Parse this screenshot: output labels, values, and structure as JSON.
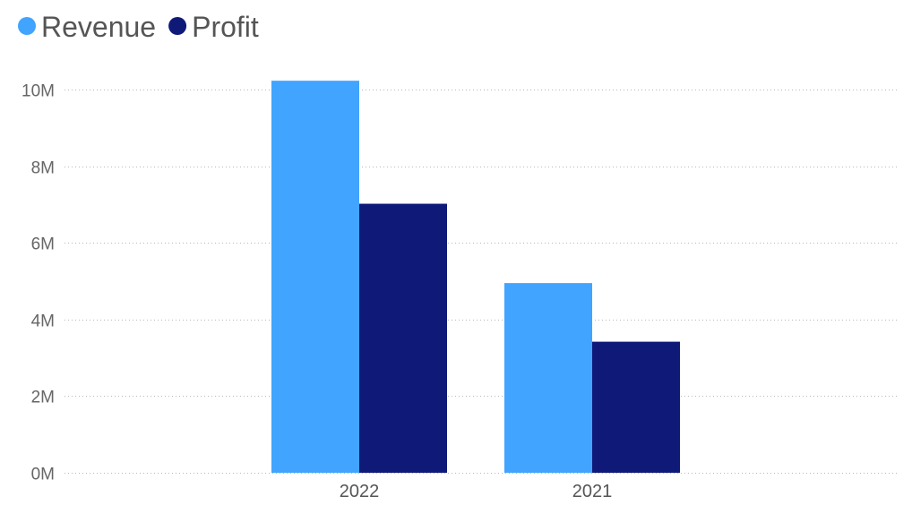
{
  "chart_data": {
    "type": "bar",
    "title": "",
    "xlabel": "",
    "ylabel": "",
    "categories": [
      "2022",
      "2021"
    ],
    "series": [
      {
        "name": "Revenue",
        "color": "#41a4ff",
        "values": [
          10230000,
          4950000
        ]
      },
      {
        "name": "Profit",
        "color": "#0f1a78",
        "values": [
          7020000,
          3420000
        ]
      }
    ],
    "ylim": [
      0,
      10000000
    ],
    "yticks": [
      0,
      2000000,
      4000000,
      6000000,
      8000000,
      10000000
    ],
    "ytick_labels": [
      "0M",
      "2M",
      "4M",
      "6M",
      "8M",
      "10M"
    ],
    "grid": true,
    "legend_position": "top-left"
  }
}
